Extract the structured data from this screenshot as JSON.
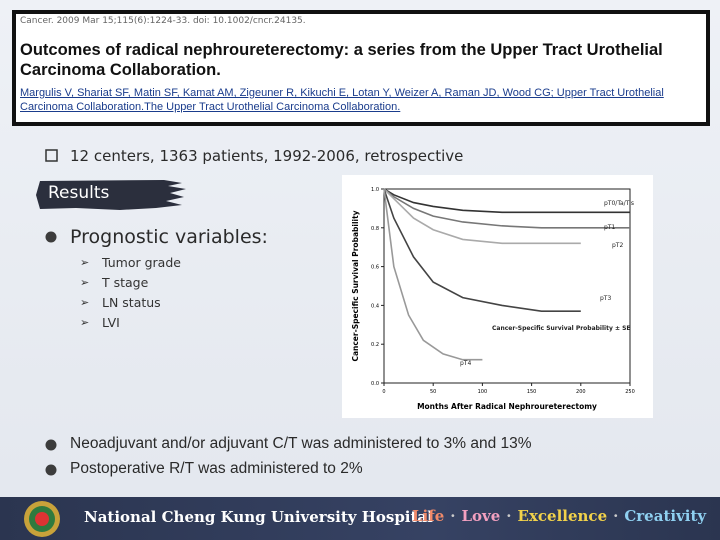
{
  "citation": {
    "journal": "Cancer. 2009 Mar 15;115(6):1224-33. doi: 10.1002/cncr.24135.",
    "title": "Outcomes of radical nephroureterectomy: a series from the Upper Tract Urothelial Carcinoma Collaboration.",
    "authors": "Margulis V, Shariat SF, Matin SF, Kamat AM, Zigeuner R, Kikuchi E, Lotan Y, Weizer A, Raman JD, Wood CG; Upper Tract Urothelial Carcinoma Collaboration.The Upper Tract Urothelial Carcinoma Collaboration."
  },
  "intro": "12 centers, 1363 patients, 1992-2006, retrospective",
  "section": "Results",
  "prognostic": {
    "heading": "Prognostic variables:",
    "items": [
      "Tumor grade",
      "T stage",
      "LN status",
      "LVI"
    ]
  },
  "figure": {
    "y_label": "Cancer-Specific Survival Probability",
    "x_label": "Months After Radical Nephroureterectomy",
    "table_title": "Cancer-Specific Survival Probability ± SE",
    "xlim": [
      0,
      250
    ],
    "xticks": [
      0,
      50,
      100,
      150,
      200,
      250
    ],
    "ylim": [
      0,
      1
    ],
    "yticks": [
      {
        "value": 0,
        "label": "0.0"
      },
      {
        "value": 0.2,
        "label": "0.2"
      },
      {
        "value": 0.4,
        "label": "0.4"
      },
      {
        "value": 0.6,
        "label": "0.6"
      },
      {
        "value": 0.8,
        "label": "0.8"
      },
      {
        "value": 1,
        "label": "1.0"
      }
    ],
    "series": [
      {
        "name": "pT0/Ta/Tis",
        "color": "#333333",
        "x": [
          0,
          10,
          30,
          50,
          80,
          120,
          160,
          200,
          250
        ],
        "values": [
          1,
          0.97,
          0.93,
          0.91,
          0.89,
          0.88,
          0.88,
          0.88,
          0.88
        ]
      },
      {
        "name": "pT1",
        "color": "#777777",
        "x": [
          0,
          10,
          30,
          50,
          80,
          120,
          160,
          200,
          250
        ],
        "values": [
          1,
          0.96,
          0.9,
          0.86,
          0.83,
          0.81,
          0.8,
          0.8,
          0.8
        ]
      },
      {
        "name": "pT2",
        "color": "#aaaaaa",
        "x": [
          0,
          10,
          30,
          50,
          80,
          120,
          160,
          200
        ],
        "values": [
          1,
          0.95,
          0.85,
          0.79,
          0.74,
          0.72,
          0.72,
          0.72
        ]
      },
      {
        "name": "pT3",
        "color": "#444444",
        "x": [
          0,
          10,
          30,
          50,
          80,
          120,
          160,
          200
        ],
        "values": [
          1,
          0.85,
          0.65,
          0.52,
          0.44,
          0.4,
          0.37,
          0.37
        ]
      },
      {
        "name": "pT4",
        "color": "#999999",
        "x": [
          0,
          10,
          25,
          40,
          60,
          80,
          100
        ],
        "values": [
          1,
          0.6,
          0.35,
          0.22,
          0.15,
          0.12,
          0.12
        ]
      }
    ]
  },
  "bullets": [
    "Neoadjuvant and/or adjuvant C/T was administered to 3% and 13%",
    "Postoperative R/T was administered to 2%"
  ],
  "footer": {
    "hospital": "National Cheng Kung University Hospital",
    "motto": [
      "Life",
      "Love",
      "Excellence",
      "Creativity"
    ],
    "separator": "·"
  }
}
